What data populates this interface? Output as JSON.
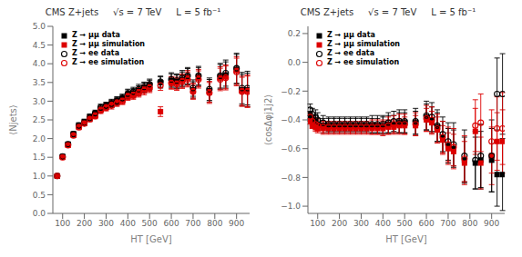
{
  "chart_data": [
    {
      "type": "scatter",
      "title": "CMS Z+jets     √s = 7 TeV     L = 5 fb⁻¹",
      "x_label": "HT [GeV]",
      "y_label": "⟨Njets⟩",
      "xlim": [
        55,
        960
      ],
      "ylim": [
        0,
        5
      ],
      "xticks": [
        100,
        200,
        300,
        400,
        500,
        600,
        700,
        800,
        900
      ],
      "yticks": [
        {
          "value": 0,
          "label": "0.0"
        },
        0.5,
        {
          "value": 1.0,
          "label": "1.0"
        },
        1.5,
        {
          "value": 2.0,
          "label": "2.0"
        },
        2.5,
        {
          "value": 3.0,
          "label": "3.0"
        },
        3.5,
        {
          "value": 4.0,
          "label": "4.0"
        },
        4.5,
        {
          "value": 5.0,
          "label": "5.0"
        }
      ],
      "grid": false,
      "legend": "upper left",
      "series": [
        {
          "name": "Z → μμ data",
          "color": "#000000",
          "marker": "square",
          "x": [
            75,
            100,
            125,
            150,
            175,
            200,
            225,
            250,
            275,
            300,
            325,
            350,
            375,
            400,
            425,
            450,
            475,
            500,
            550,
            600,
            625,
            650,
            675,
            700,
            725,
            775,
            825,
            850,
            900,
            925,
            950
          ],
          "values": [
            1.0,
            1.52,
            1.85,
            2.12,
            2.35,
            2.45,
            2.58,
            2.65,
            2.8,
            2.87,
            2.95,
            3.02,
            3.08,
            3.18,
            3.22,
            3.28,
            3.35,
            3.42,
            3.5,
            3.55,
            3.52,
            3.58,
            3.65,
            3.3,
            3.65,
            3.28,
            3.65,
            3.7,
            3.85,
            3.3,
            3.3
          ],
          "yerr": [
            0.02,
            0.04,
            0.05,
            0.06,
            0.07,
            0.07,
            0.08,
            0.08,
            0.09,
            0.09,
            0.1,
            0.1,
            0.1,
            0.12,
            0.12,
            0.13,
            0.13,
            0.14,
            0.15,
            0.18,
            0.18,
            0.2,
            0.22,
            0.22,
            0.25,
            0.3,
            0.33,
            0.35,
            0.4,
            0.42,
            0.45
          ]
        },
        {
          "name": "Z → μμ simulation",
          "color": "#dd0000",
          "marker": "square",
          "x": [
            75,
            100,
            125,
            150,
            175,
            200,
            225,
            250,
            275,
            300,
            325,
            350,
            375,
            400,
            425,
            450,
            475,
            500,
            550,
            600,
            625,
            650,
            675,
            700,
            725,
            775,
            825,
            850,
            900,
            925,
            950
          ],
          "values": [
            1.0,
            1.5,
            1.82,
            2.1,
            2.32,
            2.42,
            2.55,
            2.63,
            2.78,
            2.85,
            2.92,
            2.98,
            3.02,
            3.15,
            3.18,
            3.25,
            3.32,
            3.38,
            2.72,
            3.5,
            3.48,
            3.55,
            3.62,
            3.28,
            3.62,
            3.25,
            3.62,
            3.65,
            3.82,
            3.28,
            3.28
          ],
          "yerr": [
            0.02,
            0.03,
            0.04,
            0.05,
            0.06,
            0.06,
            0.07,
            0.07,
            0.08,
            0.08,
            0.09,
            0.09,
            0.09,
            0.1,
            0.1,
            0.11,
            0.11,
            0.12,
            0.13,
            0.16,
            0.16,
            0.18,
            0.2,
            0.2,
            0.23,
            0.28,
            0.3,
            0.32,
            0.37,
            0.39,
            0.42
          ]
        },
        {
          "name": "Z → ee data",
          "color": "#000000",
          "marker": "circle",
          "x": [
            75,
            100,
            125,
            150,
            175,
            200,
            225,
            250,
            275,
            300,
            325,
            350,
            375,
            400,
            425,
            450,
            475,
            500,
            550,
            600,
            625,
            650,
            675,
            700,
            725,
            775,
            825,
            850,
            900,
            925,
            950
          ],
          "values": [
            1.0,
            1.52,
            1.85,
            2.12,
            2.35,
            2.42,
            2.55,
            2.68,
            2.83,
            2.88,
            2.93,
            3.0,
            3.08,
            3.2,
            3.25,
            3.32,
            3.38,
            3.45,
            3.52,
            3.58,
            3.55,
            3.62,
            3.68,
            3.35,
            3.68,
            3.32,
            3.68,
            3.75,
            3.88,
            3.35,
            3.35
          ],
          "yerr": [
            0.02,
            0.04,
            0.05,
            0.06,
            0.07,
            0.07,
            0.08,
            0.08,
            0.09,
            0.09,
            0.1,
            0.1,
            0.1,
            0.12,
            0.12,
            0.13,
            0.13,
            0.14,
            0.15,
            0.18,
            0.18,
            0.2,
            0.22,
            0.22,
            0.25,
            0.3,
            0.33,
            0.35,
            0.4,
            0.42,
            0.45
          ]
        },
        {
          "name": "Z → ee simulation",
          "color": "#dd0000",
          "marker": "circle",
          "x": [
            75,
            100,
            125,
            150,
            175,
            200,
            225,
            250,
            275,
            300,
            325,
            350,
            375,
            400,
            425,
            450,
            475,
            500,
            550,
            600,
            625,
            650,
            675,
            700,
            725,
            775,
            825,
            850,
            900,
            925,
            950
          ],
          "values": [
            1.0,
            1.5,
            1.82,
            2.08,
            2.3,
            2.4,
            2.52,
            2.6,
            2.75,
            2.82,
            2.88,
            2.95,
            3.0,
            3.12,
            3.15,
            3.22,
            3.28,
            3.35,
            3.42,
            3.48,
            3.45,
            3.52,
            3.58,
            3.25,
            3.58,
            3.22,
            3.58,
            3.62,
            3.78,
            3.25,
            3.25
          ],
          "yerr": [
            0.02,
            0.03,
            0.04,
            0.05,
            0.06,
            0.06,
            0.07,
            0.07,
            0.08,
            0.08,
            0.09,
            0.09,
            0.09,
            0.1,
            0.1,
            0.11,
            0.11,
            0.12,
            0.13,
            0.16,
            0.16,
            0.18,
            0.2,
            0.2,
            0.23,
            0.28,
            0.3,
            0.32,
            0.37,
            0.39,
            0.42
          ]
        }
      ]
    },
    {
      "type": "scatter",
      "title": "CMS Z+jets     √s = 7 TeV     L = 5 fb⁻¹",
      "x_label": "HT [GeV]",
      "y_label": "⟨cosΔφj1j2⟩",
      "xlim": [
        55,
        960
      ],
      "ylim": [
        -1.05,
        0.25
      ],
      "xticks": [
        100,
        200,
        300,
        400,
        500,
        600,
        700,
        800,
        900
      ],
      "yticks": [
        {
          "value": -1.0,
          "label": "−1.0"
        },
        {
          "value": -0.8,
          "label": "−0.8"
        },
        {
          "value": -0.6,
          "label": "−0.6"
        },
        {
          "value": -0.4,
          "label": "−0.4"
        },
        {
          "value": -0.2,
          "label": "−0.2"
        },
        {
          "value": 0.0,
          "label": "0.0"
        },
        0.2
      ],
      "grid": false,
      "legend": "upper left",
      "series": [
        {
          "name": "Z → μμ data",
          "color": "#000000",
          "marker": "square",
          "x": [
            65,
            75,
            90,
            100,
            125,
            150,
            175,
            200,
            225,
            250,
            275,
            300,
            325,
            350,
            375,
            400,
            425,
            450,
            475,
            500,
            550,
            600,
            625,
            650,
            675,
            700,
            725,
            775,
            825,
            850,
            900,
            925,
            950
          ],
          "values": [
            -0.37,
            -0.4,
            -0.41,
            -0.43,
            -0.44,
            -0.44,
            -0.44,
            -0.44,
            -0.44,
            -0.44,
            -0.44,
            -0.44,
            -0.44,
            -0.44,
            -0.44,
            -0.44,
            -0.43,
            -0.43,
            -0.42,
            -0.42,
            -0.42,
            -0.38,
            -0.4,
            -0.45,
            -0.52,
            -0.58,
            -0.6,
            -0.68,
            -0.7,
            -0.68,
            -0.68,
            -0.78,
            -0.78
          ],
          "yerr": [
            0.03,
            0.03,
            0.04,
            0.04,
            0.05,
            0.05,
            0.05,
            0.05,
            0.05,
            0.05,
            0.05,
            0.05,
            0.05,
            0.05,
            0.05,
            0.06,
            0.06,
            0.06,
            0.07,
            0.07,
            0.08,
            0.09,
            0.09,
            0.1,
            0.11,
            0.12,
            0.13,
            0.16,
            0.18,
            0.2,
            0.22,
            0.22,
            0.25
          ]
        },
        {
          "name": "Z → μμ simulation",
          "color": "#dd0000",
          "marker": "square",
          "x": [
            65,
            75,
            90,
            100,
            125,
            150,
            175,
            200,
            225,
            250,
            275,
            300,
            325,
            350,
            375,
            400,
            425,
            450,
            475,
            500,
            550,
            600,
            625,
            650,
            675,
            700,
            725,
            775,
            825,
            850,
            900,
            925,
            950
          ],
          "values": [
            -0.41,
            -0.44,
            -0.45,
            -0.46,
            -0.46,
            -0.46,
            -0.46,
            -0.46,
            -0.46,
            -0.46,
            -0.46,
            -0.46,
            -0.46,
            -0.46,
            -0.46,
            -0.46,
            -0.45,
            -0.45,
            -0.44,
            -0.44,
            -0.44,
            -0.4,
            -0.42,
            -0.47,
            -0.54,
            -0.6,
            -0.62,
            -0.7,
            -0.48,
            -0.7,
            -0.65,
            -0.55,
            -0.55
          ],
          "yerr": [
            0.02,
            0.02,
            0.03,
            0.03,
            0.04,
            0.04,
            0.04,
            0.04,
            0.04,
            0.04,
            0.04,
            0.04,
            0.04,
            0.04,
            0.04,
            0.05,
            0.05,
            0.05,
            0.05,
            0.06,
            0.07,
            0.08,
            0.08,
            0.09,
            0.1,
            0.11,
            0.12,
            0.15,
            0.16,
            0.18,
            0.2,
            0.2,
            0.22
          ]
        },
        {
          "name": "Z → ee data",
          "color": "#000000",
          "marker": "circle",
          "x": [
            65,
            75,
            90,
            100,
            125,
            150,
            175,
            200,
            225,
            250,
            275,
            300,
            325,
            350,
            375,
            400,
            425,
            450,
            475,
            500,
            550,
            600,
            625,
            650,
            675,
            700,
            725,
            775,
            825,
            850,
            900,
            925,
            950
          ],
          "values": [
            -0.33,
            -0.36,
            -0.38,
            -0.4,
            -0.42,
            -0.43,
            -0.43,
            -0.43,
            -0.43,
            -0.43,
            -0.43,
            -0.43,
            -0.43,
            -0.43,
            -0.43,
            -0.43,
            -0.42,
            -0.41,
            -0.41,
            -0.41,
            -0.41,
            -0.37,
            -0.38,
            -0.44,
            -0.5,
            -0.55,
            -0.57,
            -0.65,
            -0.68,
            -0.65,
            -0.65,
            -0.22,
            -0.22
          ],
          "yerr": [
            0.04,
            0.04,
            0.05,
            0.05,
            0.05,
            0.05,
            0.05,
            0.05,
            0.05,
            0.05,
            0.05,
            0.05,
            0.05,
            0.06,
            0.06,
            0.06,
            0.07,
            0.07,
            0.08,
            0.08,
            0.09,
            0.1,
            0.1,
            0.11,
            0.12,
            0.13,
            0.15,
            0.18,
            0.2,
            0.22,
            0.25,
            0.25,
            0.28
          ]
        },
        {
          "name": "Z → ee simulation",
          "color": "#dd0000",
          "marker": "circle",
          "x": [
            65,
            75,
            90,
            100,
            125,
            150,
            175,
            200,
            225,
            250,
            275,
            300,
            325,
            350,
            375,
            400,
            425,
            450,
            475,
            500,
            550,
            600,
            625,
            650,
            675,
            700,
            725,
            775,
            825,
            850,
            900,
            925,
            950
          ],
          "values": [
            -0.38,
            -0.41,
            -0.43,
            -0.44,
            -0.45,
            -0.45,
            -0.45,
            -0.45,
            -0.45,
            -0.45,
            -0.45,
            -0.45,
            -0.45,
            -0.45,
            -0.45,
            -0.45,
            -0.44,
            -0.43,
            -0.43,
            -0.43,
            -0.43,
            -0.39,
            -0.4,
            -0.46,
            -0.52,
            -0.57,
            -0.59,
            -0.67,
            -0.44,
            -0.42,
            -0.55,
            -0.46,
            -0.46
          ],
          "yerr": [
            0.03,
            0.03,
            0.04,
            0.04,
            0.04,
            0.04,
            0.04,
            0.04,
            0.04,
            0.04,
            0.04,
            0.04,
            0.04,
            0.05,
            0.05,
            0.05,
            0.06,
            0.06,
            0.07,
            0.07,
            0.08,
            0.09,
            0.09,
            0.1,
            0.11,
            0.12,
            0.13,
            0.16,
            0.18,
            0.2,
            0.22,
            0.22,
            0.25
          ]
        }
      ]
    }
  ]
}
